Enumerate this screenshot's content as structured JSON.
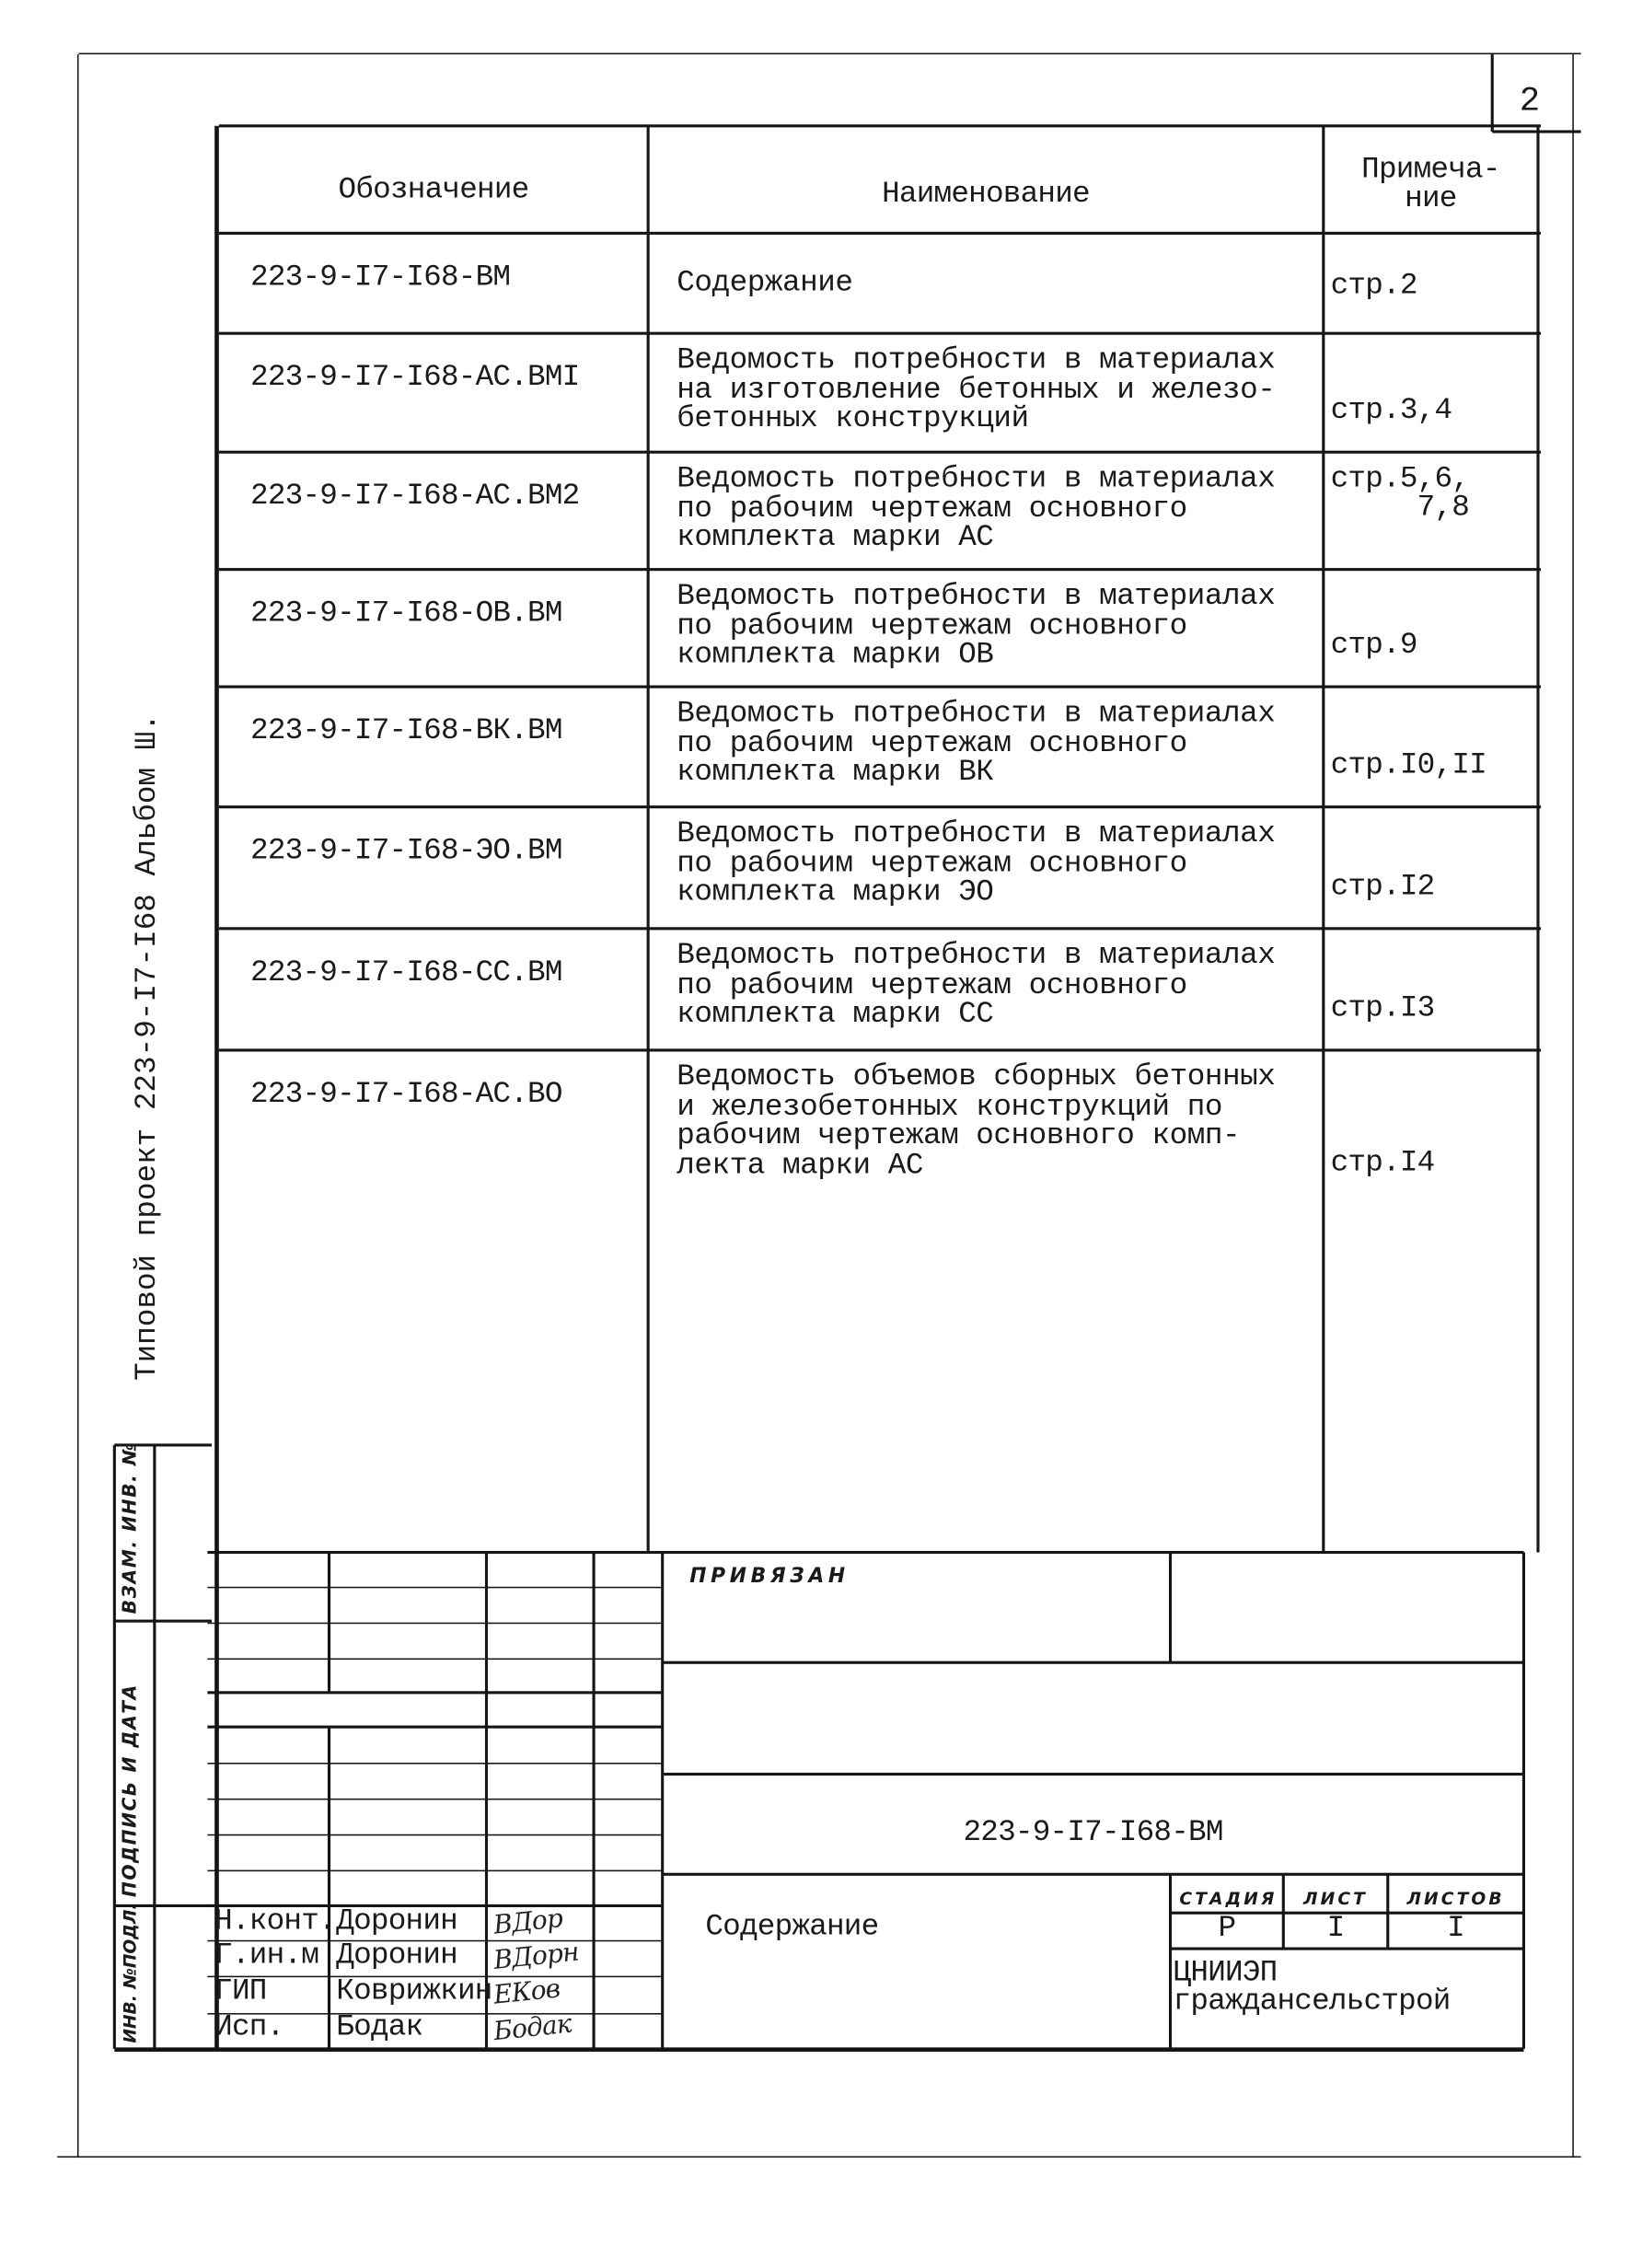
{
  "page_number": "2",
  "side_title": "Типовой проект 223-9-I7-I68 Альбом Ш.",
  "side_strip": {
    "replacement_inv": "ВЗАМ. ИНВ. №",
    "signature_date": "ПОДПИСЬ И ДАТА",
    "original_inv": "ИНВ. №ПОДЛ."
  },
  "table": {
    "headers": {
      "designation": "Обозначение",
      "name": "Наименование",
      "note": "Примеча-\nние"
    },
    "rows": [
      {
        "designation": "223-9-I7-I68-ВМ",
        "name": "Содержание",
        "note": "стр.2"
      },
      {
        "designation": "223-9-I7-I68-АС.ВМI",
        "name": "Ведомость потребности в материалах\nна изготовление бетонных и железо-\nбетонных конструкций",
        "note": "стр.3,4"
      },
      {
        "designation": "223-9-I7-I68-АС.ВМ2",
        "name": "Ведомость потребности в материалах\nпо рабочим чертежам основного\nкомплекта марки АС",
        "note": "стр.5,6,\n     7,8"
      },
      {
        "designation": "223-9-I7-I68-ОВ.ВМ",
        "name": "Ведомость потребности в материалах\nпо рабочим чертежам основного\nкомплекта марки ОВ",
        "note": "стр.9"
      },
      {
        "designation": "223-9-I7-I68-ВК.ВМ",
        "name": "Ведомость потребности в материалах\nпо рабочим чертежам основного\nкомплекта марки ВК",
        "note": "стр.I0,II"
      },
      {
        "designation": "223-9-I7-I68-ЭО.ВМ",
        "name": "Ведомость потребности в материалах\nпо рабочим чертежам основного\nкомплекта марки ЭО",
        "note": "стр.I2"
      },
      {
        "designation": "223-9-I7-I68-СС.ВМ",
        "name": "Ведомость потребности в материалах\nпо рабочим чертежам основного\nкомплекта марки СС",
        "note": "стр.I3"
      },
      {
        "designation": "223-9-I7-I68-АС.ВО",
        "name": "Ведомость объемов сборных бетонных\nи железобетонных конструкций по\nрабочим чертежам основного комп-\nлекта марки АС",
        "note": "стр.I4"
      }
    ]
  },
  "title_block": {
    "bound_label": "ПРИВЯЗАН",
    "doc_code": "223-9-I7-I68-ВМ",
    "sheet_title": "Содержание",
    "stage_label": "СТАДИЯ",
    "sheet_label": "ЛИСТ",
    "sheets_label": "ЛИСТОВ",
    "stage": "Р",
    "sheet": "I",
    "sheets": "I",
    "organization": "ЦНИИЭП\nграждансельстрой",
    "people": [
      {
        "role": "Н.конт.",
        "name": "Доронин",
        "signature": "ВДор"
      },
      {
        "role": "Г.ин.м",
        "name": "Доронин",
        "signature": "ВДорн"
      },
      {
        "role": "ГИП",
        "name": "Коврижкин",
        "signature": "ЕКов"
      },
      {
        "role": "Исп.",
        "name": "Бодак",
        "signature": "Бодак"
      }
    ]
  }
}
